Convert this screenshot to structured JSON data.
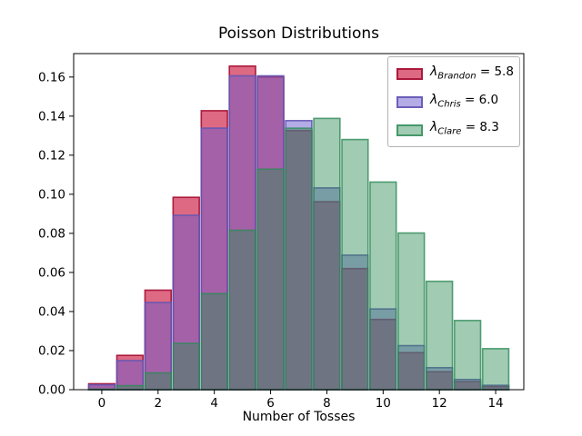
{
  "title": "Poisson Distributions",
  "chart_data": {
    "type": "bar",
    "title": "Poisson Distributions",
    "xlabel": "Number of Tosses",
    "ylabel": "",
    "x": [
      0,
      1,
      2,
      3,
      4,
      5,
      6,
      7,
      8,
      9,
      10,
      11,
      12,
      13,
      14
    ],
    "series": [
      {
        "name": "Brandon",
        "lambda": 5.8,
        "legend": {
          "symbol": "λ",
          "subscript": "Brandon",
          "equals": "=",
          "value": "5.8"
        },
        "fill": "rgba(205,25,65,0.65)",
        "edge": "rgba(168,20,55,0.95)",
        "values": [
          0.00303,
          0.01756,
          0.05092,
          0.09845,
          0.14276,
          0.1656,
          0.16008,
          0.13263,
          0.09616,
          0.06197,
          0.03594,
          0.01895,
          0.00916,
          0.00409,
          0.00169
        ]
      },
      {
        "name": "Chris",
        "lambda": 6.0,
        "legend": {
          "symbol": "λ",
          "subscript": "Chris",
          "equals": "=",
          "value": "6.0"
        },
        "fill": "rgba(106,90,205,0.5)",
        "edge": "rgba(100,85,180,0.9)",
        "values": [
          0.00248,
          0.01487,
          0.04462,
          0.08924,
          0.13385,
          0.16062,
          0.16062,
          0.13768,
          0.10326,
          0.06884,
          0.0413,
          0.02253,
          0.01126,
          0.0052,
          0.00223
        ]
      },
      {
        "name": "Clare",
        "lambda": 8.3,
        "legend": {
          "symbol": "λ",
          "subscript": "Clare",
          "equals": "=",
          "value": "8.3"
        },
        "fill": "rgba(46,139,87,0.45)",
        "edge": "rgba(46,139,87,0.8)",
        "values": [
          0.00025,
          0.00206,
          0.00856,
          0.02368,
          0.04914,
          0.08158,
          0.11285,
          0.13381,
          0.13883,
          0.12803,
          0.10626,
          0.08018,
          0.05546,
          0.03541,
          0.02099
        ]
      }
    ],
    "xlim": [
      -1,
      15
    ],
    "ylim": [
      0,
      0.172
    ],
    "xticks": [
      0,
      2,
      4,
      6,
      8,
      10,
      12,
      14
    ],
    "yticks": [
      0.0,
      0.02,
      0.04,
      0.06,
      0.08,
      0.1,
      0.12,
      0.14,
      0.16
    ],
    "ytick_format_decimals": 2,
    "bar_width": 0.93,
    "grid": false,
    "legend_position": "upper right",
    "axis_color": "#000000",
    "background_color": "#ffffff"
  }
}
